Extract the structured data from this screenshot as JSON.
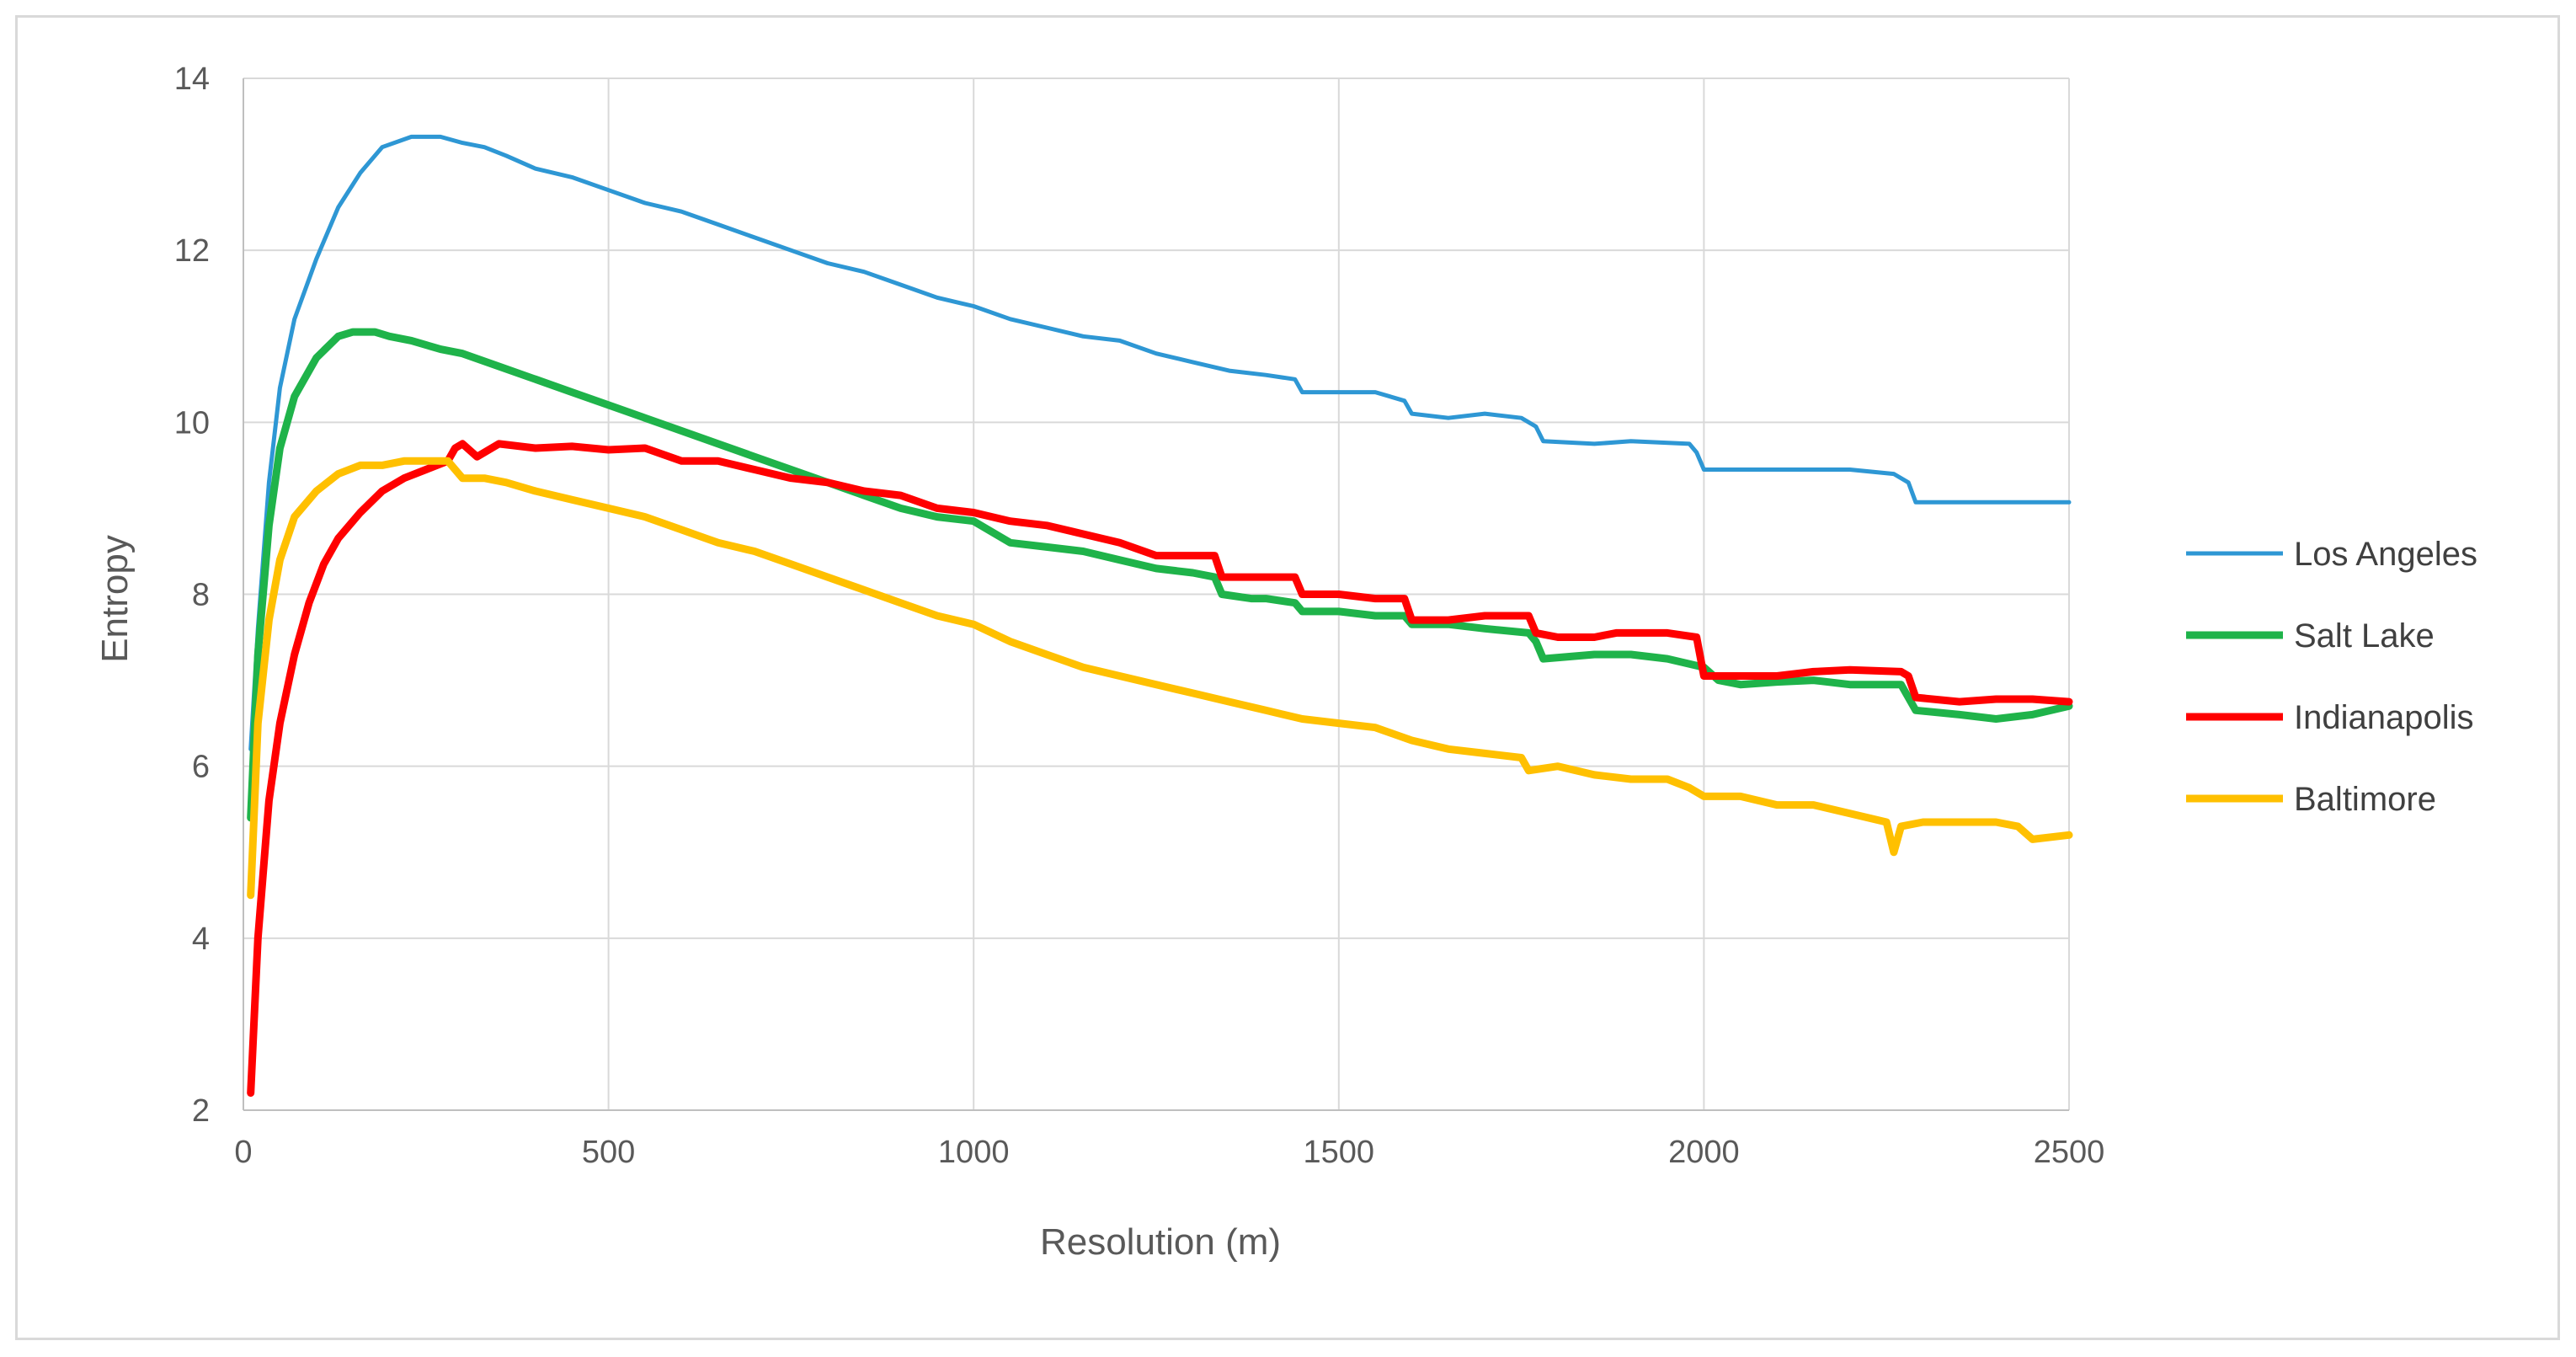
{
  "chart_data": {
    "type": "line",
    "title": "",
    "xlabel": "Resolution (m)",
    "ylabel": "Entropy",
    "xlim": [
      0,
      2500
    ],
    "ylim": [
      2,
      14
    ],
    "x_ticks": [
      0,
      500,
      1000,
      1500,
      2000,
      2500
    ],
    "y_ticks": [
      2,
      4,
      6,
      8,
      10,
      12,
      14
    ],
    "grid": "both",
    "legend_position": "right",
    "series": [
      {
        "name": "Los Angeles",
        "color": "#2e97d4",
        "points": [
          [
            10,
            6.2
          ],
          [
            20,
            7.6
          ],
          [
            35,
            9.3
          ],
          [
            50,
            10.4
          ],
          [
            70,
            11.2
          ],
          [
            100,
            11.9
          ],
          [
            130,
            12.5
          ],
          [
            160,
            12.9
          ],
          [
            190,
            13.2
          ],
          [
            230,
            13.32
          ],
          [
            270,
            13.32
          ],
          [
            300,
            13.25
          ],
          [
            330,
            13.2
          ],
          [
            360,
            13.1
          ],
          [
            400,
            12.95
          ],
          [
            450,
            12.85
          ],
          [
            500,
            12.7
          ],
          [
            550,
            12.55
          ],
          [
            600,
            12.45
          ],
          [
            650,
            12.3
          ],
          [
            700,
            12.15
          ],
          [
            750,
            12.0
          ],
          [
            800,
            11.85
          ],
          [
            850,
            11.75
          ],
          [
            900,
            11.6
          ],
          [
            950,
            11.45
          ],
          [
            1000,
            11.35
          ],
          [
            1050,
            11.2
          ],
          [
            1100,
            11.1
          ],
          [
            1150,
            11.0
          ],
          [
            1200,
            10.95
          ],
          [
            1250,
            10.8
          ],
          [
            1300,
            10.7
          ],
          [
            1350,
            10.6
          ],
          [
            1400,
            10.55
          ],
          [
            1440,
            10.5
          ],
          [
            1450,
            10.35
          ],
          [
            1550,
            10.35
          ],
          [
            1590,
            10.25
          ],
          [
            1600,
            10.1
          ],
          [
            1650,
            10.05
          ],
          [
            1700,
            10.1
          ],
          [
            1750,
            10.05
          ],
          [
            1770,
            9.95
          ],
          [
            1780,
            9.78
          ],
          [
            1850,
            9.75
          ],
          [
            1900,
            9.78
          ],
          [
            1980,
            9.75
          ],
          [
            1990,
            9.65
          ],
          [
            2000,
            9.45
          ],
          [
            2050,
            9.45
          ],
          [
            2100,
            9.45
          ],
          [
            2150,
            9.45
          ],
          [
            2200,
            9.45
          ],
          [
            2260,
            9.4
          ],
          [
            2280,
            9.3
          ],
          [
            2290,
            9.07
          ],
          [
            2400,
            9.07
          ],
          [
            2500,
            9.07
          ]
        ]
      },
      {
        "name": "Salt Lake",
        "color": "#1fb34a",
        "points": [
          [
            10,
            5.4
          ],
          [
            20,
            7.3
          ],
          [
            35,
            8.8
          ],
          [
            50,
            9.7
          ],
          [
            70,
            10.3
          ],
          [
            100,
            10.75
          ],
          [
            130,
            11.0
          ],
          [
            150,
            11.05
          ],
          [
            180,
            11.05
          ],
          [
            200,
            11.0
          ],
          [
            230,
            10.95
          ],
          [
            270,
            10.85
          ],
          [
            300,
            10.8
          ],
          [
            350,
            10.65
          ],
          [
            400,
            10.5
          ],
          [
            450,
            10.35
          ],
          [
            500,
            10.2
          ],
          [
            550,
            10.05
          ],
          [
            600,
            9.9
          ],
          [
            650,
            9.75
          ],
          [
            700,
            9.6
          ],
          [
            750,
            9.45
          ],
          [
            800,
            9.3
          ],
          [
            850,
            9.15
          ],
          [
            900,
            9.0
          ],
          [
            950,
            8.9
          ],
          [
            1000,
            8.85
          ],
          [
            1050,
            8.6
          ],
          [
            1100,
            8.55
          ],
          [
            1150,
            8.5
          ],
          [
            1200,
            8.4
          ],
          [
            1250,
            8.3
          ],
          [
            1300,
            8.25
          ],
          [
            1330,
            8.2
          ],
          [
            1340,
            8.0
          ],
          [
            1380,
            7.95
          ],
          [
            1400,
            7.95
          ],
          [
            1440,
            7.9
          ],
          [
            1450,
            7.8
          ],
          [
            1500,
            7.8
          ],
          [
            1550,
            7.75
          ],
          [
            1590,
            7.75
          ],
          [
            1600,
            7.65
          ],
          [
            1650,
            7.65
          ],
          [
            1700,
            7.6
          ],
          [
            1760,
            7.55
          ],
          [
            1770,
            7.45
          ],
          [
            1780,
            7.25
          ],
          [
            1850,
            7.3
          ],
          [
            1900,
            7.3
          ],
          [
            1950,
            7.25
          ],
          [
            2000,
            7.15
          ],
          [
            2020,
            7.0
          ],
          [
            2050,
            6.95
          ],
          [
            2100,
            6.98
          ],
          [
            2150,
            7.0
          ],
          [
            2200,
            6.95
          ],
          [
            2270,
            6.95
          ],
          [
            2290,
            6.65
          ],
          [
            2350,
            6.6
          ],
          [
            2400,
            6.55
          ],
          [
            2450,
            6.6
          ],
          [
            2500,
            6.7
          ]
        ]
      },
      {
        "name": "Indianapolis",
        "color": "#ff0000",
        "points": [
          [
            10,
            2.2
          ],
          [
            20,
            4.0
          ],
          [
            35,
            5.6
          ],
          [
            50,
            6.5
          ],
          [
            70,
            7.3
          ],
          [
            90,
            7.9
          ],
          [
            110,
            8.35
          ],
          [
            130,
            8.65
          ],
          [
            160,
            8.95
          ],
          [
            190,
            9.2
          ],
          [
            220,
            9.35
          ],
          [
            250,
            9.45
          ],
          [
            280,
            9.55
          ],
          [
            290,
            9.7
          ],
          [
            300,
            9.75
          ],
          [
            320,
            9.6
          ],
          [
            350,
            9.75
          ],
          [
            400,
            9.7
          ],
          [
            450,
            9.72
          ],
          [
            500,
            9.68
          ],
          [
            550,
            9.7
          ],
          [
            600,
            9.55
          ],
          [
            650,
            9.55
          ],
          [
            700,
            9.45
          ],
          [
            750,
            9.35
          ],
          [
            800,
            9.3
          ],
          [
            850,
            9.2
          ],
          [
            900,
            9.15
          ],
          [
            950,
            9.0
          ],
          [
            1000,
            8.95
          ],
          [
            1050,
            8.85
          ],
          [
            1100,
            8.8
          ],
          [
            1150,
            8.7
          ],
          [
            1200,
            8.6
          ],
          [
            1250,
            8.45
          ],
          [
            1300,
            8.45
          ],
          [
            1330,
            8.45
          ],
          [
            1340,
            8.2
          ],
          [
            1400,
            8.2
          ],
          [
            1440,
            8.2
          ],
          [
            1450,
            8.0
          ],
          [
            1500,
            8.0
          ],
          [
            1550,
            7.95
          ],
          [
            1590,
            7.95
          ],
          [
            1600,
            7.7
          ],
          [
            1650,
            7.7
          ],
          [
            1700,
            7.75
          ],
          [
            1760,
            7.75
          ],
          [
            1770,
            7.55
          ],
          [
            1800,
            7.5
          ],
          [
            1850,
            7.5
          ],
          [
            1880,
            7.55
          ],
          [
            1950,
            7.55
          ],
          [
            1990,
            7.5
          ],
          [
            2000,
            7.05
          ],
          [
            2050,
            7.05
          ],
          [
            2100,
            7.05
          ],
          [
            2150,
            7.1
          ],
          [
            2200,
            7.12
          ],
          [
            2270,
            7.1
          ],
          [
            2280,
            7.05
          ],
          [
            2290,
            6.8
          ],
          [
            2350,
            6.75
          ],
          [
            2400,
            6.78
          ],
          [
            2450,
            6.78
          ],
          [
            2500,
            6.75
          ]
        ]
      },
      {
        "name": "Baltimore",
        "color": "#ffc000",
        "points": [
          [
            10,
            4.5
          ],
          [
            20,
            6.5
          ],
          [
            35,
            7.7
          ],
          [
            50,
            8.4
          ],
          [
            70,
            8.9
          ],
          [
            100,
            9.2
          ],
          [
            130,
            9.4
          ],
          [
            160,
            9.5
          ],
          [
            190,
            9.5
          ],
          [
            220,
            9.55
          ],
          [
            250,
            9.55
          ],
          [
            280,
            9.55
          ],
          [
            300,
            9.35
          ],
          [
            330,
            9.35
          ],
          [
            360,
            9.3
          ],
          [
            400,
            9.2
          ],
          [
            450,
            9.1
          ],
          [
            500,
            9.0
          ],
          [
            550,
            8.9
          ],
          [
            600,
            8.75
          ],
          [
            650,
            8.6
          ],
          [
            700,
            8.5
          ],
          [
            750,
            8.35
          ],
          [
            800,
            8.2
          ],
          [
            850,
            8.05
          ],
          [
            900,
            7.9
          ],
          [
            950,
            7.75
          ],
          [
            1000,
            7.65
          ],
          [
            1050,
            7.45
          ],
          [
            1100,
            7.3
          ],
          [
            1150,
            7.15
          ],
          [
            1200,
            7.05
          ],
          [
            1250,
            6.95
          ],
          [
            1300,
            6.85
          ],
          [
            1350,
            6.75
          ],
          [
            1400,
            6.65
          ],
          [
            1450,
            6.55
          ],
          [
            1500,
            6.5
          ],
          [
            1550,
            6.45
          ],
          [
            1600,
            6.3
          ],
          [
            1650,
            6.2
          ],
          [
            1700,
            6.15
          ],
          [
            1750,
            6.1
          ],
          [
            1760,
            5.95
          ],
          [
            1800,
            6.0
          ],
          [
            1850,
            5.9
          ],
          [
            1900,
            5.85
          ],
          [
            1950,
            5.85
          ],
          [
            1980,
            5.75
          ],
          [
            2000,
            5.65
          ],
          [
            2050,
            5.65
          ],
          [
            2100,
            5.55
          ],
          [
            2150,
            5.55
          ],
          [
            2200,
            5.45
          ],
          [
            2250,
            5.35
          ],
          [
            2260,
            5.0
          ],
          [
            2270,
            5.3
          ],
          [
            2300,
            5.35
          ],
          [
            2350,
            5.35
          ],
          [
            2400,
            5.35
          ],
          [
            2430,
            5.3
          ],
          [
            2450,
            5.15
          ],
          [
            2500,
            5.2
          ]
        ]
      }
    ]
  }
}
